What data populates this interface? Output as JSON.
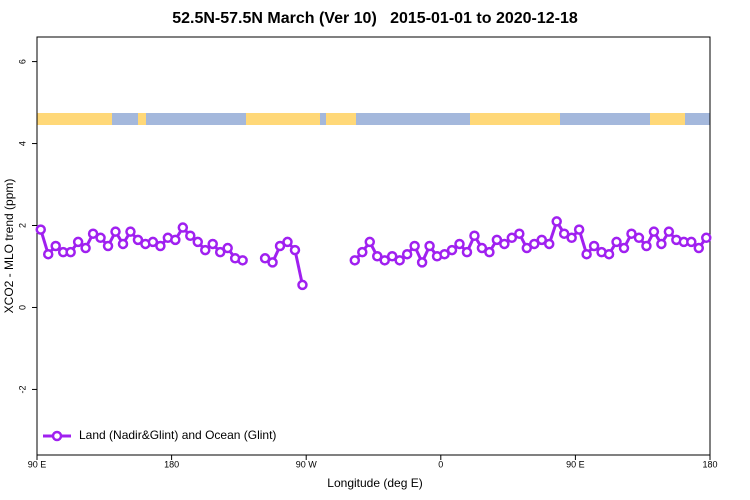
{
  "chart_data": {
    "type": "line",
    "title": "52.5N-57.5N March (Ver 10)   2015-01-01 to 2020-12-18",
    "x_label": "Longitude (deg E)",
    "y_label": "XCO2 - MLO trend (ppm)",
    "x": [
      92.5,
      97.5,
      102.5,
      107.5,
      112.5,
      117.5,
      122.5,
      127.5,
      132.5,
      137.5,
      142.5,
      147.5,
      152.5,
      157.5,
      162.5,
      167.5,
      172.5,
      177.5,
      182.5,
      187.5,
      192.5,
      197.5,
      202.5,
      207.5,
      212.5,
      217.5,
      222.5,
      227.5,
      232.5,
      237.5,
      242.5,
      247.5,
      252.5,
      257.5,
      262.5,
      267.5,
      272.5,
      277.5,
      282.5,
      287.5,
      292.5,
      297.5,
      302.5,
      307.5,
      312.5,
      317.5,
      322.5,
      327.5,
      332.5,
      337.5,
      342.5,
      347.5,
      352.5,
      357.5,
      362.5,
      367.5,
      372.5,
      377.5,
      382.5,
      387.5,
      392.5,
      397.5,
      402.5,
      407.5,
      412.5,
      417.5,
      422.5,
      427.5,
      432.5,
      437.5,
      442.5,
      447.5,
      452.5,
      457.5,
      462.5,
      467.5,
      472.5,
      477.5,
      482.5,
      487.5,
      492.5,
      497.5,
      502.5,
      507.5,
      512.5,
      517.5,
      522.5,
      527.5,
      532.5,
      537.5
    ],
    "series": [
      {
        "name": "Land (Nadir&Glint) and Ocean (Glint)",
        "color": "#a020f0",
        "values": [
          1.9,
          1.3,
          1.5,
          1.35,
          1.35,
          1.6,
          1.45,
          1.8,
          1.7,
          1.5,
          1.85,
          1.55,
          1.85,
          1.65,
          1.55,
          1.6,
          1.5,
          1.7,
          1.65,
          1.95,
          1.75,
          1.6,
          1.4,
          1.55,
          1.35,
          1.45,
          1.2,
          1.15,
          null,
          null,
          1.2,
          1.1,
          1.5,
          1.6,
          1.4,
          0.55,
          null,
          null,
          null,
          null,
          null,
          null,
          1.15,
          1.35,
          1.6,
          1.25,
          1.15,
          1.25,
          1.15,
          1.3,
          1.5,
          1.1,
          1.5,
          1.25,
          1.3,
          1.4,
          1.55,
          1.35,
          1.75,
          1.45,
          1.35,
          1.65,
          1.55,
          1.7,
          1.8,
          1.45,
          1.55,
          1.65,
          1.55,
          2.1,
          1.8,
          1.7,
          1.9,
          1.3,
          1.5,
          1.35,
          1.3,
          1.6,
          1.45,
          1.8,
          1.7,
          1.5,
          1.85,
          1.55,
          1.85,
          1.65,
          1.6,
          1.6,
          1.45,
          1.7
        ]
      }
    ],
    "xlim": [
      90,
      540
    ],
    "xticks": [
      {
        "value": 90,
        "label": "90 E"
      },
      180,
      {
        "value": 270,
        "label": "90 W"
      },
      {
        "value": 360,
        "label": "0"
      },
      {
        "value": 450,
        "label": "90 E"
      },
      {
        "value": 540,
        "label": "180"
      }
    ],
    "ylim": [
      -3.6,
      6.6
    ],
    "yticks": [
      -2,
      0,
      2,
      4,
      6
    ],
    "legend": "bottomleft"
  }
}
